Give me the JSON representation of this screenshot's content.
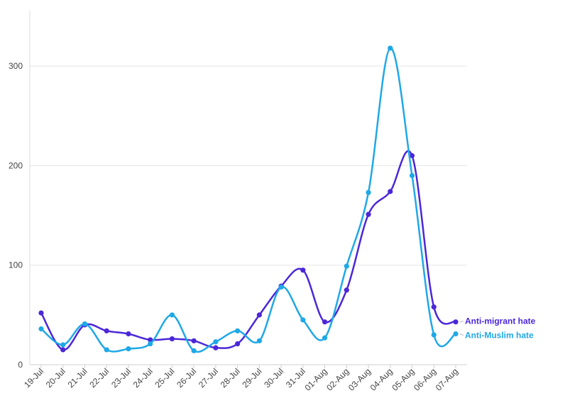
{
  "chart_data": {
    "type": "line",
    "title": "",
    "xlabel": "",
    "ylabel": "",
    "categories": [
      "19-Jul",
      "20-Jul",
      "21-Jul",
      "22-Jul",
      "23-Jul",
      "24-Jul",
      "25-Jul",
      "26-Jul",
      "27-Jul",
      "28-Jul",
      "29-Jul",
      "30-Jul",
      "31-Jul",
      "01-Aug",
      "02-Aug",
      "03-Aug",
      "04-Aug",
      "05-Aug",
      "06-Aug",
      "07-Aug"
    ],
    "ylim": [
      0,
      350
    ],
    "yticks": [
      0,
      100,
      200,
      300
    ],
    "grid": true,
    "legend": "inline labels at line ends (right)",
    "series": [
      {
        "name": "Anti-migrant hate",
        "color": "#4b27d8",
        "values": [
          52,
          15,
          40,
          34,
          31,
          25,
          26,
          24,
          17,
          21,
          50,
          79,
          95,
          43,
          75,
          151,
          174,
          210,
          58,
          43
        ]
      },
      {
        "name": "Anti-Muslim hate",
        "color": "#1fa8e6",
        "values": [
          36,
          20,
          41,
          15,
          16,
          21,
          50,
          14,
          23,
          34,
          24,
          78,
          45,
          27,
          99,
          173,
          318,
          190,
          30,
          31
        ]
      }
    ]
  }
}
